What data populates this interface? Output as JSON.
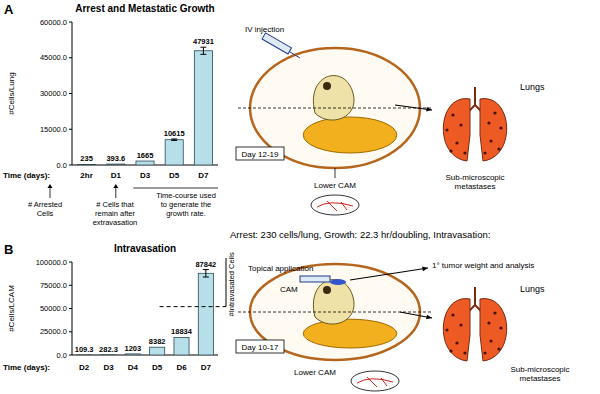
{
  "chart_data": [
    {
      "panel": "A",
      "type": "bar",
      "title": "Arrest and Metastatic Growth",
      "y_label": "#Cells/Lung",
      "x_label": "Time (days):",
      "categories": [
        "2hr",
        "D1",
        "D3",
        "D5",
        "D7"
      ],
      "values": [
        235,
        393.6,
        1665,
        10615,
        47931
      ],
      "errors": [
        0,
        0,
        0,
        300,
        1500
      ],
      "color": "#b7dfe9",
      "ylim": [
        0,
        60000
      ],
      "yticks": [
        {
          "value": 0,
          "label": "0.0"
        },
        {
          "value": 15000,
          "label": "15000.0"
        },
        {
          "value": 30000,
          "label": "30000.0"
        },
        {
          "value": 45000,
          "label": "45000.0"
        },
        {
          "value": 60000,
          "label": "60000.0"
        }
      ],
      "data_labels": true,
      "annotations": [
        "# Arrested Cells",
        "# Cells that remain after extravasation",
        "Time-course used to generate the growth rate."
      ]
    },
    {
      "panel": "B",
      "type": "bar",
      "title": "Intravasation",
      "y_label": "#Cells/LCAM",
      "x_label": "Time (days):",
      "categories": [
        "D2",
        "D3",
        "D4",
        "D5",
        "D6",
        "D7"
      ],
      "values": [
        109.3,
        282.3,
        1203,
        8382,
        18834,
        87842
      ],
      "errors": [
        0,
        0,
        0,
        0,
        0,
        4000
      ],
      "color": "#b7dfe9",
      "ylim": [
        0,
        100000
      ],
      "yticks": [
        {
          "value": 0,
          "label": "0.0"
        },
        {
          "value": 25000,
          "label": "25000.0"
        },
        {
          "value": 50000,
          "label": "50000.0"
        },
        {
          "value": 75000,
          "label": "75000.0"
        },
        {
          "value": 100000,
          "label": "100000.0"
        }
      ],
      "data_labels": true,
      "dashed_line": 52000,
      "annotations": [
        "#Intravasated Cells"
      ]
    }
  ],
  "diagrams": [
    {
      "injection": "IV injection",
      "day": "Day 12-19",
      "lower_cam": "Lower CAM",
      "organ": "Lungs",
      "metastases": "Sub-microscopic metastases"
    },
    {
      "injection": "Topical application",
      "cam": "CAM",
      "tumor": "1° tumor weight and analysis",
      "day": "Day 10-17",
      "lower_cam": "Lower CAM",
      "organ": "Lungs",
      "metastases": "Sub-microscopic metastases"
    }
  ],
  "summary": "Arrest: 230 cells/lung,  Growth: 22.3 hr/doubling,  Intravasation:"
}
